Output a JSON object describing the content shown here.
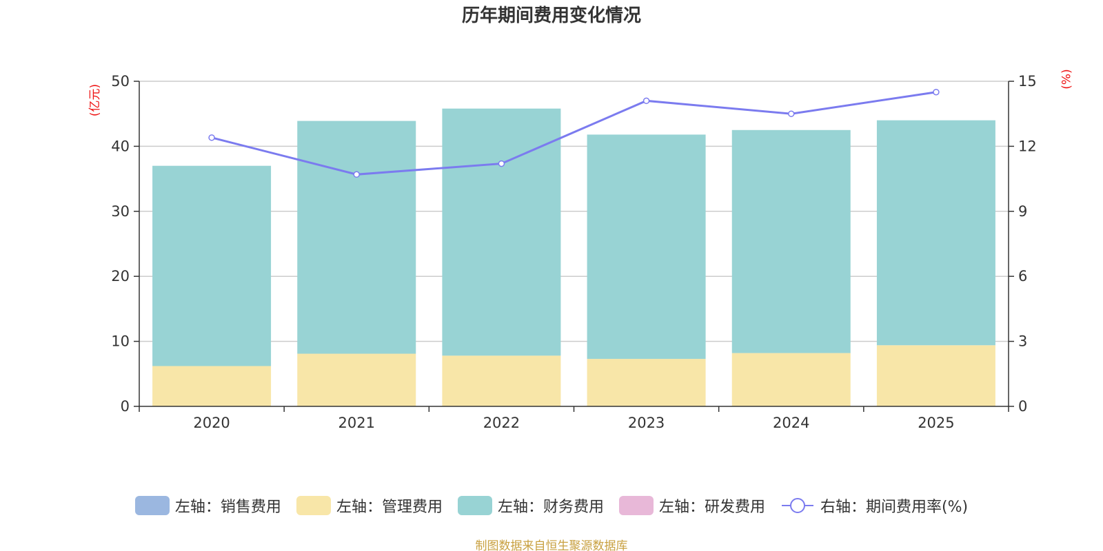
{
  "chart_data": {
    "type": "bar",
    "title": "历年期间费用变化情况",
    "categories": [
      "2020",
      "2021",
      "2022",
      "2023",
      "2024",
      "2025"
    ],
    "left_axis": {
      "unit": "(亿元)",
      "ylim": [
        0,
        50
      ],
      "ticks": [
        "0",
        "10",
        "20",
        "30",
        "40",
        "50"
      ]
    },
    "right_axis": {
      "unit": "(%)",
      "ylim": [
        0,
        15
      ],
      "ticks": [
        "0",
        "3",
        "6",
        "9",
        "12",
        "15"
      ]
    },
    "stacked": true,
    "series": [
      {
        "name": "左轴：销售费用",
        "axis": "left",
        "type": "bar",
        "color": "#9bb7e0",
        "values": [
          0,
          0,
          0,
          0,
          0,
          0
        ]
      },
      {
        "name": "左轴：管理费用",
        "axis": "left",
        "type": "bar",
        "color": "#f8e6a8",
        "values": [
          6.2,
          8.1,
          7.8,
          7.3,
          8.2,
          9.4
        ]
      },
      {
        "name": "左轴：财务费用",
        "axis": "left",
        "type": "bar",
        "color": "#98d3d4",
        "values": [
          30.8,
          35.8,
          38.0,
          34.5,
          34.3,
          34.6
        ]
      },
      {
        "name": "左轴：研发费用",
        "axis": "left",
        "type": "bar",
        "color": "#e8b8d8",
        "values": [
          0,
          0,
          0,
          0,
          0,
          0
        ]
      },
      {
        "name": "右轴：期间费用率(%)",
        "axis": "right",
        "type": "line",
        "color": "#7b7bef",
        "values": [
          12.4,
          10.7,
          11.2,
          14.1,
          13.5,
          14.5
        ]
      }
    ],
    "grid": true,
    "legend_position": "bottom"
  },
  "source_note": "制图数据来自恒生聚源数据库"
}
